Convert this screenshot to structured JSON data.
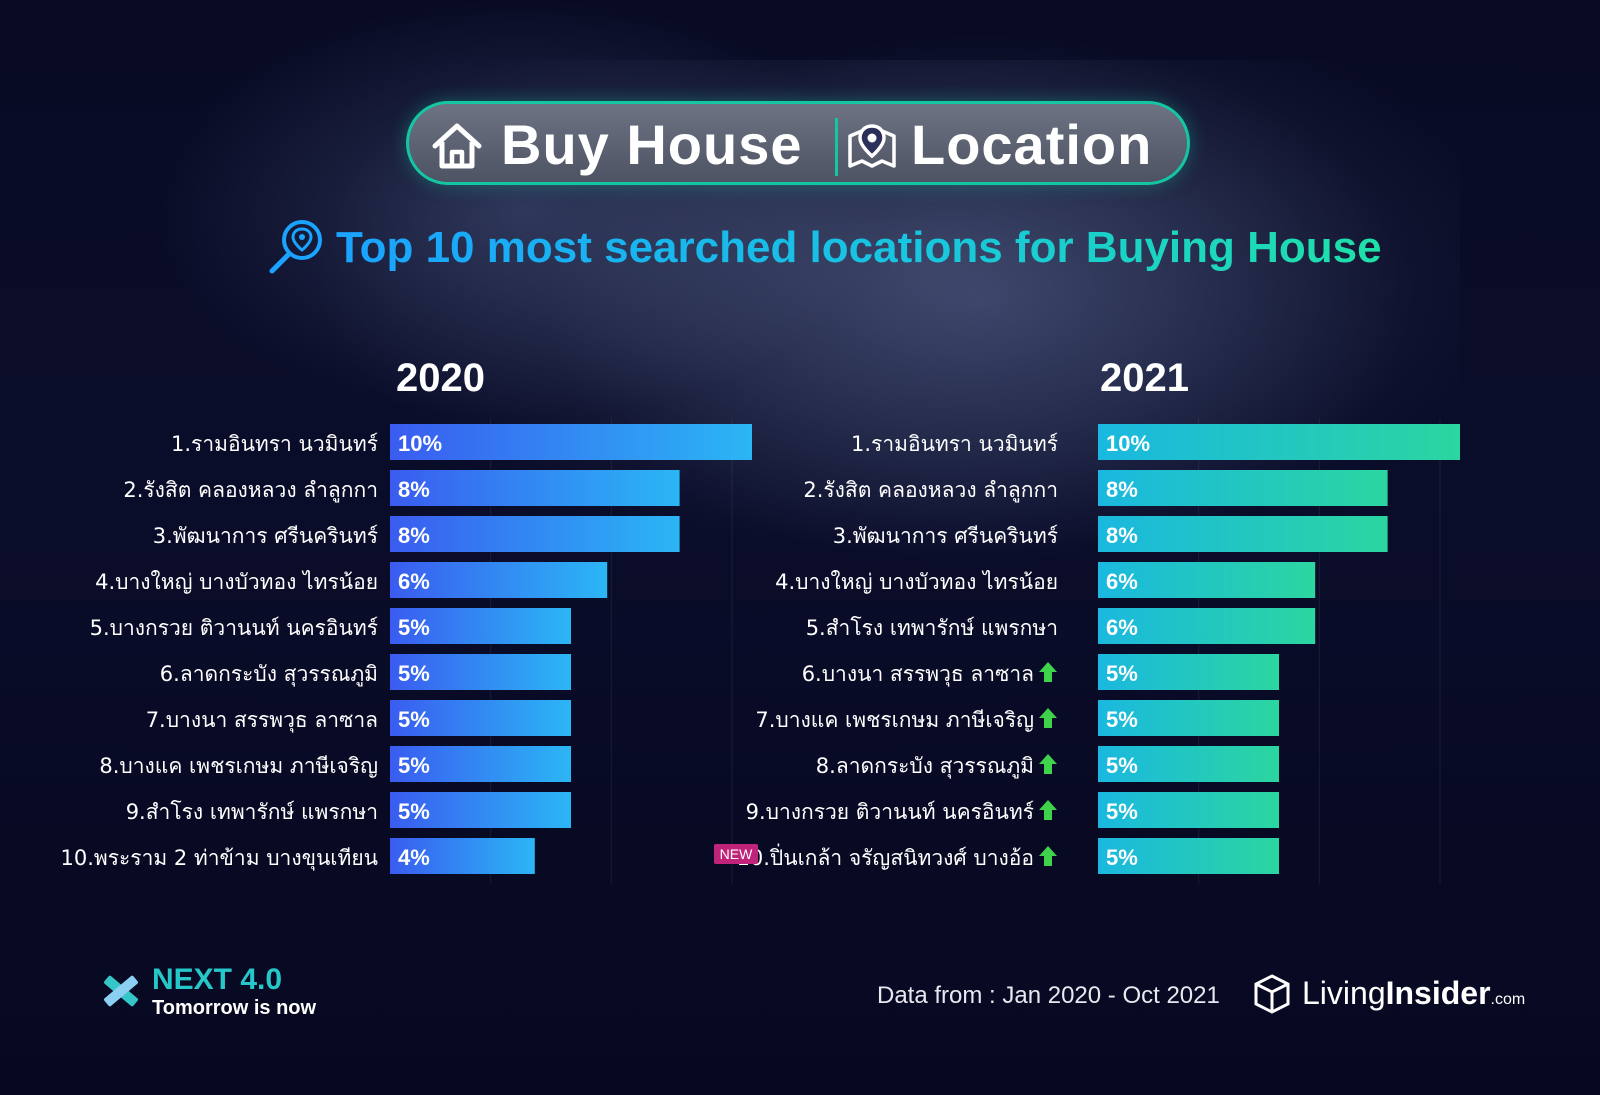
{
  "header": {
    "left_label": "Buy House",
    "right_label": "Location",
    "left_icon": "house-icon",
    "right_icon": "map-pin-icon"
  },
  "subtitle": "Top 10 most searched locations for Buying House",
  "footer": {
    "data_source": "Data from : Jan 2020 - Oct 2021",
    "next_brand": "NEXT 4.0",
    "next_tagline": "Tomorrow is now",
    "living_brand_a": "Living",
    "living_brand_b": "Insider",
    "living_brand_c": ".com"
  },
  "chart_data": [
    {
      "type": "bar",
      "orientation": "horizontal",
      "title": "2020",
      "categories": [
        "1.รามอินทรา นวมินทร์",
        "2.รังสิต คลองหลวง ลำลูกกา",
        "3.พัฒนาการ ศรีนครินทร์",
        "4.บางใหญ่ บางบัวทอง ไทรน้อย",
        "5.บางกรวย ติวานนท์ นครอินทร์",
        "6.ลาดกระบัง สุวรรณภูมิ",
        "7.บางนา สรรพวุธ ลาซาล",
        "8.บางแค เพชรเกษม ภาษีเจริญ",
        "9.สำโรง เทพารักษ์ แพรกษา",
        "10.พระราม 2 ท่าข้าม บางขุนเทียน"
      ],
      "values": [
        10,
        8,
        8,
        6,
        5,
        5,
        5,
        5,
        5,
        4
      ],
      "value_labels": [
        "10%",
        "8%",
        "8%",
        "6%",
        "5%",
        "5%",
        "5%",
        "5%",
        "5%",
        "4%"
      ],
      "xlim": [
        0,
        10
      ],
      "colors": {
        "bar_start": "#3a5cf0",
        "bar_end": "#2bb6f5"
      }
    },
    {
      "type": "bar",
      "orientation": "horizontal",
      "title": "2021",
      "categories": [
        "1.รามอินทรา นวมินทร์",
        "2.รังสิต คลองหลวง ลำลูกกา",
        "3.พัฒนาการ ศรีนครินทร์",
        "4.บางใหญ่ บางบัวทอง ไทรน้อย",
        "5.สำโรง เทพารักษ์ แพรกษา",
        "6.บางนา สรรพวุธ ลาซาล",
        "7.บางแค เพชรเกษม ภาษีเจริญ",
        "8.ลาดกระบัง สุวรรณภูมิ",
        "9.บางกรวย ติวานนท์ นครอินทร์",
        "10.ปิ่นเกล้า จรัญสนิทวงศ์ บางอ้อ"
      ],
      "values": [
        10,
        8,
        8,
        6,
        6,
        5,
        5,
        5,
        5,
        5
      ],
      "value_labels": [
        "10%",
        "8%",
        "8%",
        "6%",
        "6%",
        "5%",
        "5%",
        "5%",
        "5%",
        "5%"
      ],
      "rank_up": [
        false,
        false,
        false,
        false,
        false,
        true,
        true,
        true,
        true,
        true
      ],
      "new_badge": [
        false,
        false,
        false,
        false,
        false,
        false,
        false,
        false,
        false,
        true
      ],
      "new_label": "NEW",
      "xlim": [
        0,
        10
      ],
      "colors": {
        "bar_start": "#1ab8e0",
        "bar_end": "#2bd6a0",
        "arrow": "#3ed34a",
        "badge": "#c0237a"
      }
    }
  ]
}
